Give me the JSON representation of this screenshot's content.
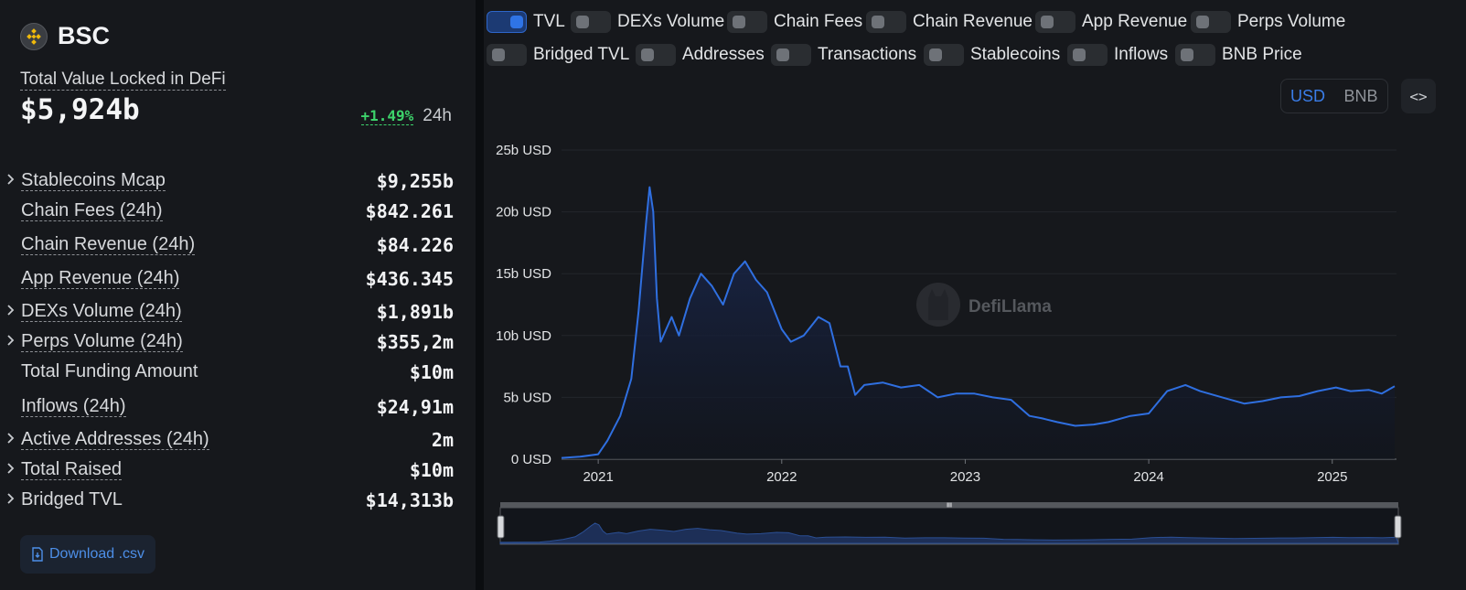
{
  "chain": {
    "name": "BSC",
    "logo_icon": "bnb-logo-icon"
  },
  "tvl": {
    "label": "Total Value Locked in DeFi",
    "value": "$5,924b",
    "change": "+1.49%",
    "period": "24h"
  },
  "metrics": [
    {
      "label": "Stablecoins Mcap",
      "value": "$9,255b",
      "expandable": true,
      "dashed": true
    },
    {
      "label": "Chain Fees (24h)",
      "value": "$842.261",
      "expandable": false,
      "dashed": true
    },
    {
      "label": "Chain Revenue (24h)",
      "value": "$84.226",
      "expandable": false,
      "dashed": true
    },
    {
      "label": "App Revenue (24h)",
      "value": "$436.345",
      "expandable": false,
      "dashed": true
    },
    {
      "label": "DEXs Volume (24h)",
      "value": "$1,891b",
      "expandable": true,
      "dashed": true
    },
    {
      "label": "Perps Volume (24h)",
      "value": "$355,2m",
      "expandable": true,
      "dashed": true
    },
    {
      "label": "Total Funding Amount",
      "value": "$10m",
      "expandable": false,
      "dashed": false
    },
    {
      "label": "Inflows (24h)",
      "value": "$24,91m",
      "expandable": false,
      "dashed": true
    },
    {
      "label": "Active Addresses (24h)",
      "value": "2m",
      "expandable": true,
      "dashed": true
    },
    {
      "label": "Total Raised",
      "value": "$10m",
      "expandable": true,
      "dashed": true
    },
    {
      "label": "Bridged TVL",
      "value": "$14,313b",
      "expandable": true,
      "dashed": false
    }
  ],
  "download": {
    "label": "Download .csv"
  },
  "toggles": [
    {
      "label": "TVL",
      "on": true
    },
    {
      "label": "DEXs Volume",
      "on": false
    },
    {
      "label": "Chain Fees",
      "on": false
    },
    {
      "label": "Chain Revenue",
      "on": false
    },
    {
      "label": "App Revenue",
      "on": false
    },
    {
      "label": "Perps Volume",
      "on": false
    },
    {
      "label": "Bridged TVL",
      "on": false
    },
    {
      "label": "Addresses",
      "on": false
    },
    {
      "label": "Transactions",
      "on": false
    },
    {
      "label": "Stablecoins",
      "on": false
    },
    {
      "label": "Inflows",
      "on": false
    },
    {
      "label": "BNB Price",
      "on": false
    }
  ],
  "currency": {
    "options": [
      "USD",
      "BNB"
    ],
    "selected": "USD"
  },
  "embed": {
    "label": "<>"
  },
  "watermark": "DefiLlama",
  "brush_handle": "III",
  "chart_data": {
    "type": "area",
    "series": [
      {
        "name": "TVL",
        "x": [
          2020.8,
          2020.9,
          2021.0,
          2021.05,
          2021.12,
          2021.18,
          2021.22,
          2021.26,
          2021.28,
          2021.3,
          2021.32,
          2021.34,
          2021.37,
          2021.4,
          2021.44,
          2021.5,
          2021.56,
          2021.62,
          2021.68,
          2021.74,
          2021.8,
          2021.86,
          2021.92,
          2022.0,
          2022.05,
          2022.12,
          2022.2,
          2022.26,
          2022.32,
          2022.36,
          2022.4,
          2022.45,
          2022.55,
          2022.65,
          2022.75,
          2022.85,
          2022.95,
          2023.05,
          2023.15,
          2023.25,
          2023.35,
          2023.42,
          2023.5,
          2023.6,
          2023.7,
          2023.78,
          2023.9,
          2024.0,
          2024.1,
          2024.2,
          2024.28,
          2024.4,
          2024.52,
          2024.62,
          2024.72,
          2024.82,
          2024.92,
          2025.02,
          2025.1,
          2025.2,
          2025.27,
          2025.34
        ],
        "values": [
          0.1,
          0.2,
          0.4,
          1.5,
          3.5,
          6.5,
          12.0,
          19.0,
          22.0,
          20.0,
          13.0,
          9.5,
          10.5,
          11.5,
          10.0,
          13.0,
          15.0,
          14.0,
          12.5,
          15.0,
          16.0,
          14.5,
          13.5,
          10.5,
          9.5,
          10.0,
          11.5,
          11.0,
          7.5,
          7.5,
          5.2,
          6.0,
          6.2,
          5.8,
          6.0,
          5.0,
          5.3,
          5.3,
          5.0,
          4.8,
          3.5,
          3.3,
          3.0,
          2.7,
          2.8,
          3.0,
          3.5,
          3.7,
          5.5,
          6.0,
          5.5,
          5.0,
          4.5,
          4.7,
          5.0,
          5.1,
          5.5,
          5.8,
          5.5,
          5.6,
          5.3,
          5.9
        ]
      }
    ],
    "xlim": [
      2020.8,
      2025.35
    ],
    "ylim": [
      0,
      25
    ],
    "x_ticks": [
      {
        "label": "2021",
        "value": 2021
      },
      {
        "label": "2022",
        "value": 2022
      },
      {
        "label": "2023",
        "value": 2023
      },
      {
        "label": "2024",
        "value": 2024
      },
      {
        "label": "2025",
        "value": 2025
      }
    ],
    "y_ticks": [
      {
        "label": "0 USD",
        "value": 0
      },
      {
        "label": "5b USD",
        "value": 5
      },
      {
        "label": "10b USD",
        "value": 10
      },
      {
        "label": "15b USD",
        "value": 15
      },
      {
        "label": "20b USD",
        "value": 20
      },
      {
        "label": "25b USD",
        "value": 25
      }
    ],
    "grid": true,
    "line_color": "#2f6fe0",
    "fill_color": "#1b2a55"
  }
}
